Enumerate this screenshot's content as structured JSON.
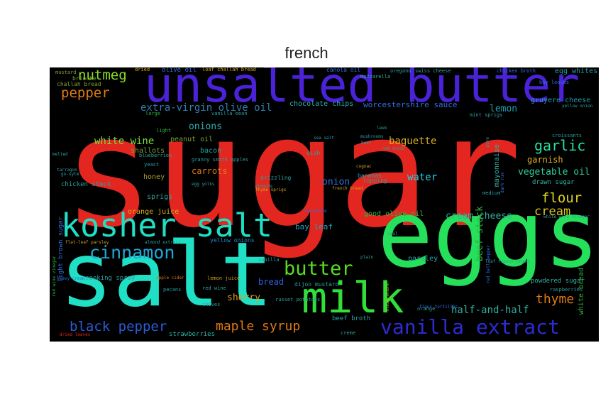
{
  "title": "french",
  "words": [
    {
      "t": "sugar",
      "c": "#e3261f"
    },
    {
      "t": "eggs",
      "c": "#25e05a"
    },
    {
      "t": "salt",
      "c": "#1fe0c4"
    },
    {
      "t": "unsalted butter",
      "c": "#4a22d8"
    },
    {
      "t": "milk",
      "c": "#30e038"
    },
    {
      "t": "kosher salt",
      "c": "#1fe0c4"
    },
    {
      "t": "vanilla extract",
      "c": "#2d2bd4"
    },
    {
      "t": "cinnamon",
      "c": "#1fa6d8"
    },
    {
      "t": "butter",
      "c": "#5adc20"
    },
    {
      "t": "black pepper",
      "c": "#2d5cd8"
    },
    {
      "t": "maple syrup",
      "c": "#e07a10"
    },
    {
      "t": "pepper",
      "c": "#e07a10"
    },
    {
      "t": "nutmeg",
      "c": "#8ae028"
    },
    {
      "t": "garlic",
      "c": "#26e09a"
    },
    {
      "t": "flour",
      "c": "#e0d81f"
    },
    {
      "t": "cream",
      "c": "#d8c41f"
    },
    {
      "t": "thyme",
      "c": "#e07a10"
    },
    {
      "t": "half-and-half",
      "c": "#2fb0a0"
    },
    {
      "t": "extra-virgin olive oil",
      "c": "#2f7fb0"
    },
    {
      "t": "white wine",
      "c": "#7ae03a"
    },
    {
      "t": "baguette",
      "c": "#d8b01f"
    },
    {
      "t": "water",
      "c": "#1fd0e0"
    },
    {
      "t": "onions",
      "c": "#2fb0b0"
    },
    {
      "t": "cream cheese",
      "c": "#2fb0a0"
    },
    {
      "t": "lemon",
      "c": "#20a0b0"
    },
    {
      "t": "onion",
      "c": "#2f6fe0"
    },
    {
      "t": "beef stock",
      "c": "#2fb040"
    },
    {
      "t": "garnish",
      "c": "#e0b01f"
    },
    {
      "t": "vegetable oil",
      "c": "#2fd0a0"
    },
    {
      "t": "bread",
      "c": "#2f60e0"
    },
    {
      "t": "sherry",
      "c": "#e0a01f"
    },
    {
      "t": "carrots",
      "c": "#e07a10"
    },
    {
      "t": "worcestershire sauce",
      "c": "#2f6fe0"
    },
    {
      "t": "chocolate chips",
      "c": "#2fb0b0"
    },
    {
      "t": "bay leaf",
      "c": "#20a0c0"
    },
    {
      "t": "good olive oil",
      "c": "#2fb040"
    },
    {
      "t": "peanut oil",
      "c": "#7aa02f"
    },
    {
      "t": "bacon",
      "c": "#1fa0a0"
    },
    {
      "t": "shallots",
      "c": "#7aa02f"
    },
    {
      "t": "honey",
      "c": "#a0a02f"
    },
    {
      "t": "chicken stock",
      "c": "#2fa0a0"
    },
    {
      "t": "sprigs",
      "c": "#2fa0a0"
    },
    {
      "t": "orange juice",
      "c": "#d8b01f"
    },
    {
      "t": "cooking spray",
      "c": "#2fa0a0"
    },
    {
      "t": "gruyere cheese",
      "c": "#20a0b0"
    },
    {
      "t": "powdered sugar",
      "c": "#2fb0a0"
    },
    {
      "t": "white bread",
      "c": "#2fb040"
    },
    {
      "t": "strawberries",
      "c": "#2fb0a0"
    },
    {
      "t": "light brown sugar",
      "c": "#2f6fe0"
    },
    {
      "t": "drawn sugar",
      "c": "#2fb0a0"
    },
    {
      "t": "dijon mustard",
      "c": "#2fa0a0"
    },
    {
      "t": "yellow onions",
      "c": "#1f8fd0"
    },
    {
      "t": "canola oil",
      "c": "#2f6fe0"
    },
    {
      "t": "olive oil",
      "c": "#2f6fe0"
    },
    {
      "t": "egg whites",
      "c": "#20a0b0"
    },
    {
      "t": "challah bread",
      "c": "#7aa02f"
    },
    {
      "t": "brioche",
      "c": "#7aa02f"
    },
    {
      "t": "mozzarella",
      "c": "#2fb0a0"
    },
    {
      "t": "oregano",
      "c": "#2fa0a0"
    },
    {
      "t": "chicken broth",
      "c": "#2f6fe0"
    },
    {
      "t": "bay leaves",
      "c": "#2f6fe0"
    },
    {
      "t": "mustard",
      "c": "#7aa02f"
    },
    {
      "t": "dried",
      "c": "#d0a01f"
    },
    {
      "t": "loaf challah bread",
      "c": "#d0a01f"
    },
    {
      "t": "swiss cheese",
      "c": "#2fa0a0"
    },
    {
      "t": "mint sprigs",
      "c": "#2fa0a0"
    },
    {
      "t": "vanilla bean",
      "c": "#2fa0a0"
    },
    {
      "t": "large",
      "c": "#2fb040"
    },
    {
      "t": "light",
      "c": "#2fb040"
    },
    {
      "t": "blueberries",
      "c": "#2fa0a0"
    },
    {
      "t": "yeast",
      "c": "#2fa0a0"
    },
    {
      "t": "granny smith apples",
      "c": "#2fa0a0"
    },
    {
      "t": "flat-leaf parsley",
      "c": "#d0a01f"
    },
    {
      "t": "almond extract",
      "c": "#2fa0a0"
    },
    {
      "t": "apple cider",
      "c": "#e07a10"
    },
    {
      "t": "parsley",
      "c": "#2fa0a0"
    },
    {
      "t": "vanilla",
      "c": "#2fa0a0"
    },
    {
      "t": "red wine",
      "c": "#2fa0a0"
    },
    {
      "t": "russet potatoes",
      "c": "#2fa0a0"
    },
    {
      "t": "lemon juice",
      "c": "#d0a01f"
    },
    {
      "t": "beef broth",
      "c": "#2fa0a0"
    },
    {
      "t": "creme",
      "c": "#2fa0a0"
    },
    {
      "t": "pecans",
      "c": "#2fa0a0"
    },
    {
      "t": "chives",
      "c": "#2fa0a0"
    },
    {
      "t": "orange",
      "c": "#2fa0a0"
    },
    {
      "t": "raspberries",
      "c": "#2fa0a0"
    },
    {
      "t": "red bell pepper",
      "c": "#2f6fe0"
    },
    {
      "t": "loaf french bread",
      "c": "#2fa0a0"
    },
    {
      "t": "dried leaves",
      "c": "#e3261f"
    },
    {
      "t": "sea salt",
      "c": "#2fa0a0"
    },
    {
      "t": "dish",
      "c": "#2fa0a0"
    },
    {
      "t": "bananas",
      "c": "#2fa0a0"
    },
    {
      "t": "topping",
      "c": "#2fa0a0"
    },
    {
      "t": "drizzling",
      "c": "#2fa0a0"
    },
    {
      "t": "french bread",
      "c": "#d0a01f"
    },
    {
      "t": "almonds",
      "c": "#2fa0a0"
    },
    {
      "t": "chocolate",
      "c": "#2f6fe0"
    },
    {
      "t": "flour tortillas",
      "c": "#2f6fe0"
    },
    {
      "t": "pure",
      "c": "#2fa0a0"
    },
    {
      "t": "mayonnaise",
      "c": "#2fb0a0"
    },
    {
      "t": "croissants",
      "c": "#2fa0a0"
    },
    {
      "t": "white wine vinegar",
      "c": "#2fa0a0"
    },
    {
      "t": "cognac",
      "c": "#d0a01f"
    },
    {
      "t": "medium",
      "c": "#2fa0a0"
    },
    {
      "t": "dark rum",
      "c": "#2f6fe0"
    },
    {
      "t": "thyme sprigs",
      "c": "#d0a01f"
    },
    {
      "t": "egg yolks",
      "c": "#2fa0a0"
    },
    {
      "t": "go-sytm",
      "c": "#2fa0a0"
    },
    {
      "t": "tarragon",
      "c": "#2fa0a0"
    },
    {
      "t": "melted",
      "c": "#2fa0a0"
    },
    {
      "t": "red wine vinegar",
      "c": "#2fb040"
    },
    {
      "t": "heavy cream",
      "c": "#2f6fe0"
    },
    {
      "t": "sliced onions",
      "c": "#d0a01f"
    },
    {
      "t": "plain",
      "c": "#2fa0a0"
    },
    {
      "t": "red onion",
      "c": "#2fa0a0"
    },
    {
      "t": "yellow onion",
      "c": "#2fa0a0"
    },
    {
      "t": "leek",
      "c": "#2fa0a0"
    },
    {
      "t": "beef",
      "c": "#2fa0a0"
    },
    {
      "t": "veal",
      "c": "#2fa0a0"
    },
    {
      "t": "mushrooms",
      "c": "#2fa0a0"
    }
  ]
}
